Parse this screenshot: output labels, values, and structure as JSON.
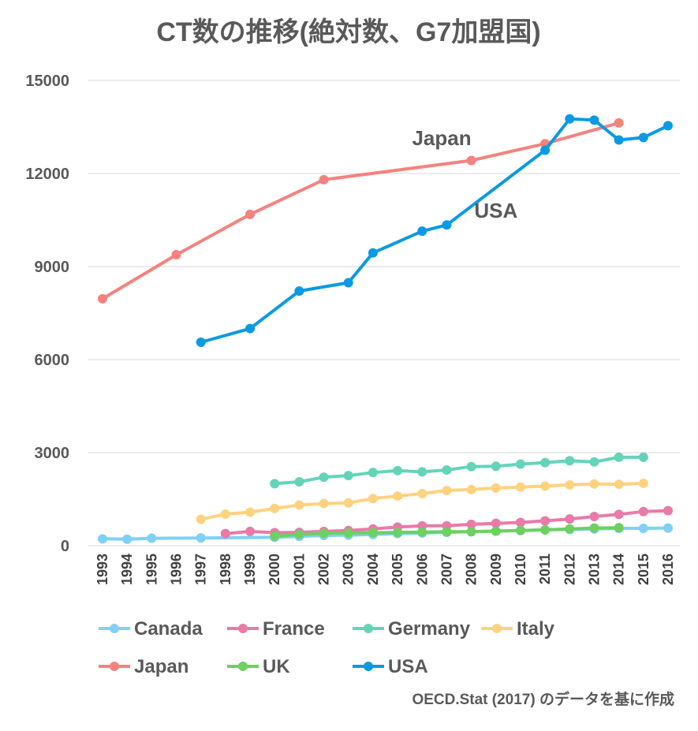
{
  "chart_data": {
    "type": "line",
    "title": "CT数の推移(絶対数、G7加盟国)",
    "xlabel": "",
    "ylabel": "",
    "x": [
      1993,
      1994,
      1995,
      1996,
      1997,
      1998,
      1999,
      2000,
      2001,
      2002,
      2003,
      2004,
      2005,
      2006,
      2007,
      2008,
      2009,
      2010,
      2011,
      2012,
      2013,
      2014,
      2015,
      2016
    ],
    "x_tick_labels": [
      "1993",
      "1994",
      "1995",
      "1996",
      "1997",
      "1998",
      "1999",
      "2000",
      "2001",
      "2002",
      "2003",
      "2004",
      "2005",
      "2006",
      "2007",
      "2008",
      "2009",
      "2010",
      "2011",
      "2012",
      "2013",
      "2014",
      "2015",
      "2016"
    ],
    "ylim": [
      0,
      15000
    ],
    "y_ticks": [
      0,
      3000,
      6000,
      9000,
      12000,
      15000
    ],
    "y_tick_labels": [
      "0",
      "3000",
      "6000",
      "9000",
      "12000",
      "15000"
    ],
    "grid": true,
    "legend_position": "bottom",
    "series": [
      {
        "name": "Canada",
        "color": "#7fd0f5",
        "values": [
          220,
          210,
          240,
          null,
          250,
          null,
          null,
          270,
          300,
          330,
          340,
          360,
          390,
          410,
          430,
          450,
          470,
          490,
          510,
          520,
          540,
          560,
          560,
          570
        ]
      },
      {
        "name": "France",
        "color": "#ea7aa8",
        "values": [
          null,
          null,
          null,
          null,
          null,
          390,
          460,
          420,
          430,
          460,
          490,
          540,
          600,
          640,
          640,
          690,
          720,
          750,
          800,
          860,
          940,
          1010,
          1100,
          1130
        ]
      },
      {
        "name": "Germany",
        "color": "#63d4b9",
        "values": [
          null,
          null,
          null,
          null,
          null,
          null,
          null,
          2000,
          2060,
          2210,
          2260,
          2360,
          2420,
          2380,
          2440,
          2550,
          2560,
          2630,
          2680,
          2740,
          2700,
          2850,
          2850,
          null
        ]
      },
      {
        "name": "Italy",
        "color": "#ffd27f",
        "values": [
          null,
          null,
          null,
          null,
          850,
          1020,
          1080,
          1200,
          1310,
          1360,
          1380,
          1520,
          1600,
          1680,
          1780,
          1810,
          1860,
          1890,
          1920,
          1960,
          1990,
          1980,
          2010,
          null
        ]
      },
      {
        "name": "Japan",
        "color": "#f4827e",
        "values": [
          7960,
          null,
          null,
          9380,
          null,
          null,
          10680,
          null,
          null,
          11800,
          null,
          null,
          null,
          null,
          null,
          12420,
          null,
          null,
          12960,
          null,
          null,
          13630,
          null,
          null
        ]
      },
      {
        "name": "UK",
        "color": "#6dd060",
        "values": [
          null,
          null,
          null,
          null,
          null,
          null,
          null,
          310,
          360,
          400,
          410,
          420,
          430,
          440,
          450,
          450,
          470,
          490,
          510,
          540,
          570,
          580,
          null,
          null
        ]
      },
      {
        "name": "USA",
        "color": "#0a9ae3",
        "values": [
          null,
          null,
          null,
          null,
          6560,
          null,
          7000,
          null,
          8210,
          null,
          8480,
          9440,
          null,
          10140,
          10340,
          null,
          null,
          null,
          12750,
          13760,
          13720,
          13080,
          13160,
          13540
        ]
      }
    ],
    "annotations": [
      {
        "text": "Japan",
        "x": 2008,
        "y": 12920,
        "anchor": "end"
      },
      {
        "text": "USA",
        "x": 2009,
        "y": 10570,
        "anchor": "middle"
      }
    ],
    "source": "OECD.Stat (2017) のデータを基に作成"
  }
}
